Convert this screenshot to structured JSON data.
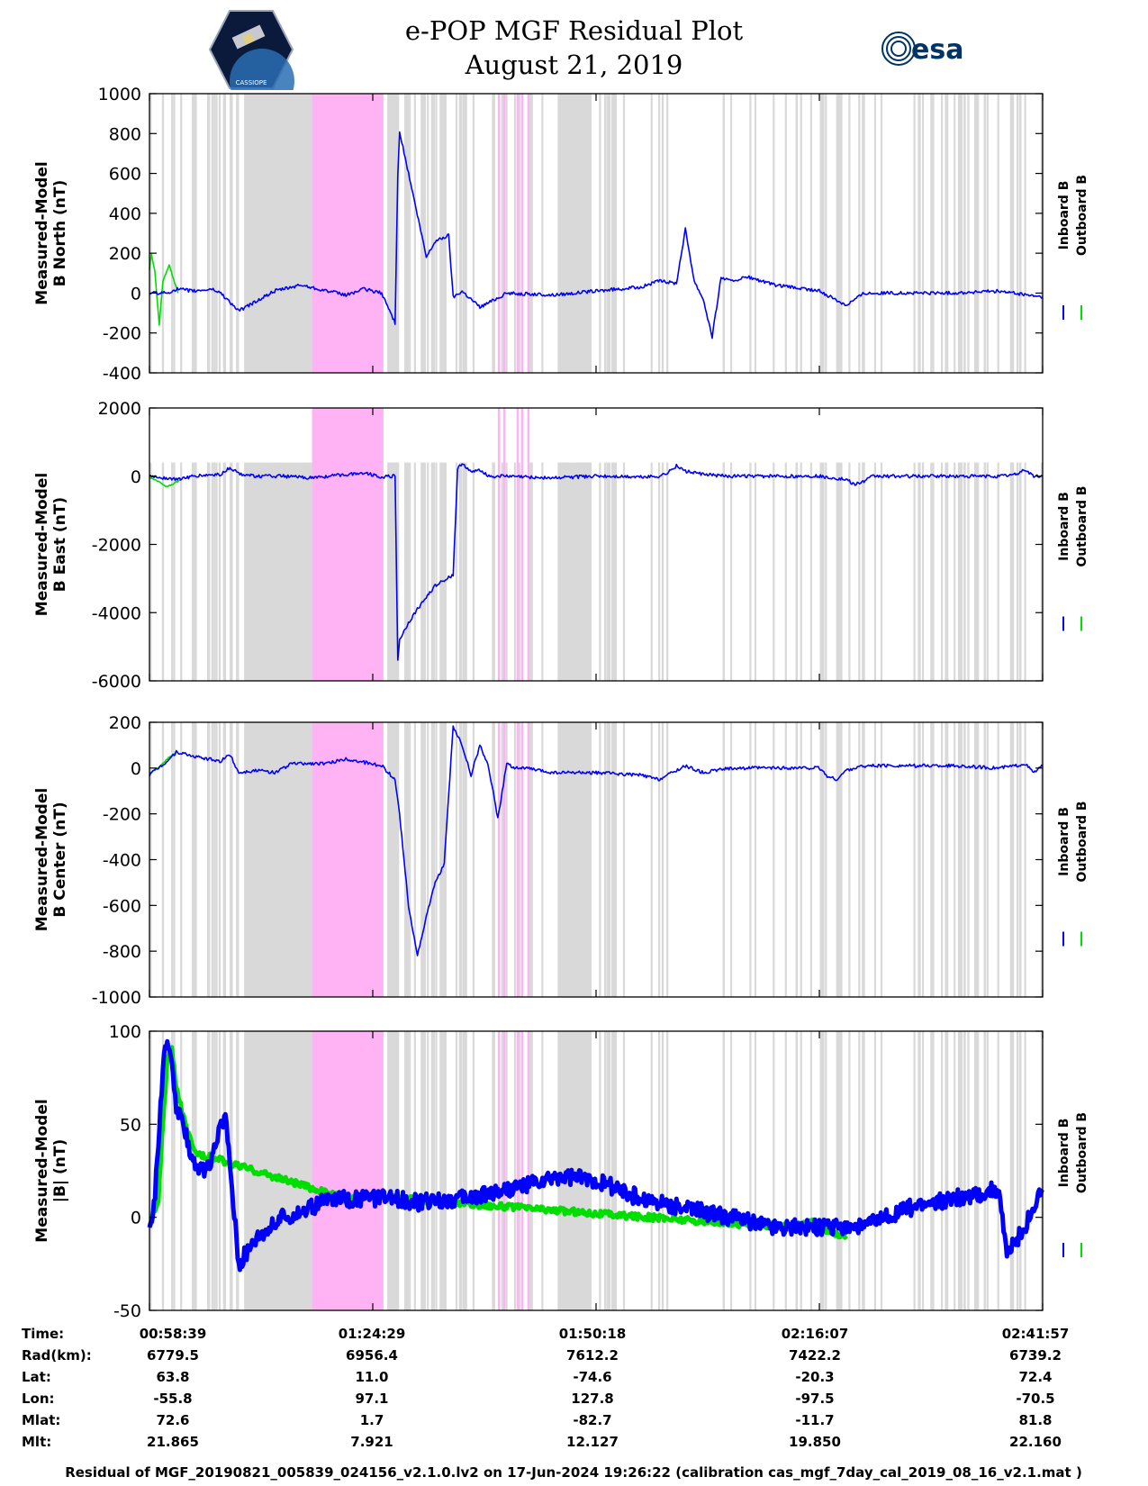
{
  "header": {
    "title_line1": "e-POP MGF Residual Plot",
    "title_line2": "August 21, 2019",
    "logo_left_text": "CASSIOPE",
    "logo_right_text": "esa"
  },
  "colors": {
    "inboard": "#0000ff",
    "outboard": "#00dd00",
    "gray_band": "#d9d9d9",
    "pink_band": "#ffb3f5"
  },
  "chart_data": [
    {
      "type": "line",
      "panel": "north",
      "ylabel_line1": "Measured-Model",
      "ylabel_line2": "B North (nT)",
      "ylim": [
        -400,
        1000
      ],
      "yticks": [
        "1000",
        "800",
        "600",
        "400",
        "200",
        "0",
        "-200",
        "-400"
      ],
      "legend": [
        "Inboard B",
        "Outboard B"
      ],
      "series": [
        {
          "name": "Outboard B",
          "color": "outboard",
          "x": [
            0,
            0.2,
            0.6,
            1.1,
            1.5,
            2.2,
            3.2
          ],
          "values": [
            120,
            200,
            110,
            -160,
            60,
            140,
            0
          ]
        },
        {
          "name": "Inboard B",
          "color": "inboard",
          "x": [
            0,
            2,
            3,
            5,
            7,
            8,
            10,
            12,
            14,
            17,
            19,
            22,
            24,
            26,
            27.5,
            27.8,
            28,
            29,
            31,
            32,
            33.5,
            34,
            35,
            37,
            40,
            45,
            50,
            55,
            57,
            59,
            60,
            61,
            62,
            63,
            64,
            65,
            67,
            70,
            75,
            78,
            80,
            85,
            90,
            95,
            100
          ],
          "values": [
            0,
            0,
            20,
            10,
            20,
            0,
            -90,
            -40,
            10,
            40,
            20,
            -10,
            20,
            0,
            -150,
            600,
            810,
            600,
            180,
            260,
            290,
            -20,
            10,
            -70,
            0,
            -10,
            10,
            30,
            60,
            50,
            320,
            60,
            -30,
            -220,
            80,
            60,
            80,
            40,
            10,
            -60,
            0,
            0,
            0,
            10,
            -20
          ]
        }
      ]
    },
    {
      "type": "line",
      "panel": "east",
      "ylabel_line1": "Measured-Model",
      "ylabel_line2": "B East (nT)",
      "ylim": [
        -6000,
        2000
      ],
      "yticks": [
        "2000",
        "0",
        "-2000",
        "-4000",
        "-6000"
      ],
      "legend": [
        "Inboard B",
        "Outboard B"
      ],
      "series": [
        {
          "name": "Outboard B",
          "color": "outboard",
          "x": [
            0,
            1,
            1.8,
            2.5,
            3.5
          ],
          "values": [
            -50,
            -150,
            -300,
            -250,
            -100
          ]
        },
        {
          "name": "Inboard B",
          "color": "inboard",
          "x": [
            0,
            3,
            5,
            8,
            9,
            10,
            12,
            15,
            18,
            20,
            24,
            26,
            27.5,
            27.8,
            28,
            29,
            30,
            32,
            34,
            34.5,
            35,
            36,
            37,
            38,
            40,
            45,
            50,
            55,
            57,
            58,
            59,
            60,
            62,
            65,
            70,
            75,
            78,
            79,
            80,
            81,
            85,
            90,
            95,
            97,
            98,
            99,
            100
          ],
          "values": [
            0,
            -100,
            0,
            50,
            250,
            80,
            0,
            0,
            -50,
            0,
            100,
            -20,
            0,
            -5400,
            -4800,
            -4300,
            -3900,
            -3200,
            -2900,
            200,
            400,
            100,
            200,
            0,
            0,
            -50,
            0,
            -20,
            0,
            100,
            300,
            150,
            50,
            0,
            0,
            0,
            -100,
            -250,
            -150,
            0,
            0,
            0,
            0,
            50,
            200,
            0,
            0
          ]
        }
      ]
    },
    {
      "type": "line",
      "panel": "center",
      "ylabel_line1": "Measured-Model",
      "ylabel_line2": "B Center (nT)",
      "ylim": [
        -1000,
        200
      ],
      "yticks": [
        "200",
        "0",
        "-200",
        "-400",
        "-600",
        "-800",
        "-1000"
      ],
      "legend": [
        "Inboard B",
        "Outboard B"
      ],
      "series": [
        {
          "name": "Outboard B",
          "color": "outboard",
          "x": [
            0,
            1,
            2,
            3
          ],
          "values": [
            -20,
            0,
            40,
            70
          ]
        },
        {
          "name": "Inboard B",
          "color": "inboard",
          "x": [
            0,
            2,
            3,
            5,
            8,
            9,
            10,
            12,
            14,
            16,
            20,
            22,
            26,
            27.5,
            28,
            29,
            30,
            31,
            32,
            33,
            34,
            35,
            36,
            37,
            38,
            39,
            40,
            41,
            42,
            45,
            50,
            55,
            57,
            59,
            60,
            62,
            65,
            70,
            75,
            76,
            77,
            78,
            80,
            85,
            90,
            95,
            97,
            98,
            99,
            100
          ],
          "values": [
            -30,
            30,
            70,
            50,
            30,
            60,
            -20,
            -10,
            -20,
            20,
            20,
            40,
            10,
            -50,
            -200,
            -600,
            -820,
            -650,
            -500,
            -420,
            180,
            100,
            -30,
            100,
            0,
            -220,
            20,
            0,
            0,
            -20,
            -20,
            -30,
            -50,
            -10,
            10,
            -20,
            0,
            0,
            0,
            -40,
            -50,
            -10,
            10,
            10,
            10,
            0,
            10,
            20,
            -20,
            10
          ]
        }
      ]
    },
    {
      "type": "line",
      "panel": "magnitude",
      "ylabel_line1": "Measured-Model",
      "ylabel_line2": "|B| (nT)",
      "ylim": [
        -50,
        100
      ],
      "yticks": [
        "100",
        "50",
        "0",
        "-50"
      ],
      "legend": [
        "Inboard B",
        "Outboard B"
      ],
      "series": [
        {
          "name": "Outboard B",
          "color": "outboard",
          "x": [
            0,
            1,
            1.5,
            2,
            2.5,
            3,
            4,
            5,
            22,
            25,
            28,
            70,
            72,
            75,
            76,
            78
          ],
          "values": [
            -5,
            10,
            50,
            85,
            90,
            70,
            50,
            35,
            10,
            12,
            10,
            -5,
            -5,
            -2,
            -8,
            -10
          ]
        },
        {
          "name": "Inboard B",
          "color": "inboard",
          "x": [
            0,
            0.5,
            1,
            1.5,
            2,
            2.5,
            3,
            4,
            5,
            6,
            7,
            8,
            8.5,
            9,
            10,
            12,
            15,
            18,
            20,
            24,
            28,
            30,
            35,
            40,
            45,
            46,
            50,
            55,
            60,
            65,
            70,
            75,
            80,
            85,
            90,
            95,
            96,
            98,
            99,
            100
          ],
          "values": [
            -5,
            5,
            40,
            80,
            95,
            80,
            60,
            45,
            30,
            25,
            30,
            50,
            55,
            30,
            -25,
            -10,
            0,
            5,
            10,
            10,
            10,
            8,
            10,
            15,
            20,
            22,
            20,
            10,
            5,
            0,
            -5,
            -5,
            -5,
            5,
            10,
            15,
            -20,
            -5,
            5,
            15
          ]
        }
      ]
    }
  ],
  "time_axis": {
    "ticks": [
      "00:58:39",
      "01:24:29",
      "01:50:18",
      "02:16:07",
      "02:41:57"
    ]
  },
  "info_table": {
    "rows": [
      {
        "label": "Time:",
        "values": [
          "00:58:39",
          "01:24:29",
          "01:50:18",
          "02:16:07",
          "02:41:57"
        ]
      },
      {
        "label": "Rad(km):",
        "values": [
          "6779.5",
          "6956.4",
          "7612.2",
          "7422.2",
          "6739.2"
        ]
      },
      {
        "label": "Lat:",
        "values": [
          "63.8",
          "11.0",
          "-74.6",
          "-20.3",
          "72.4"
        ]
      },
      {
        "label": "Lon:",
        "values": [
          "-55.8",
          "97.1",
          "127.8",
          "-97.5",
          "-70.5"
        ]
      },
      {
        "label": "Mlat:",
        "values": [
          "72.6",
          "1.7",
          "-82.7",
          "-11.7",
          "81.8"
        ]
      },
      {
        "label": "Mlt:",
        "values": [
          "21.865",
          "7.921",
          "12.127",
          "19.850",
          "22.160"
        ]
      }
    ]
  },
  "footer": {
    "text": "Residual of MGF_20190821_005839_024156_v2.1.0.lv2 on 17-Jun-2024 19:26:22 (calibration cas_mgf_7day_cal_2019_08_16_v2.1.mat )"
  }
}
